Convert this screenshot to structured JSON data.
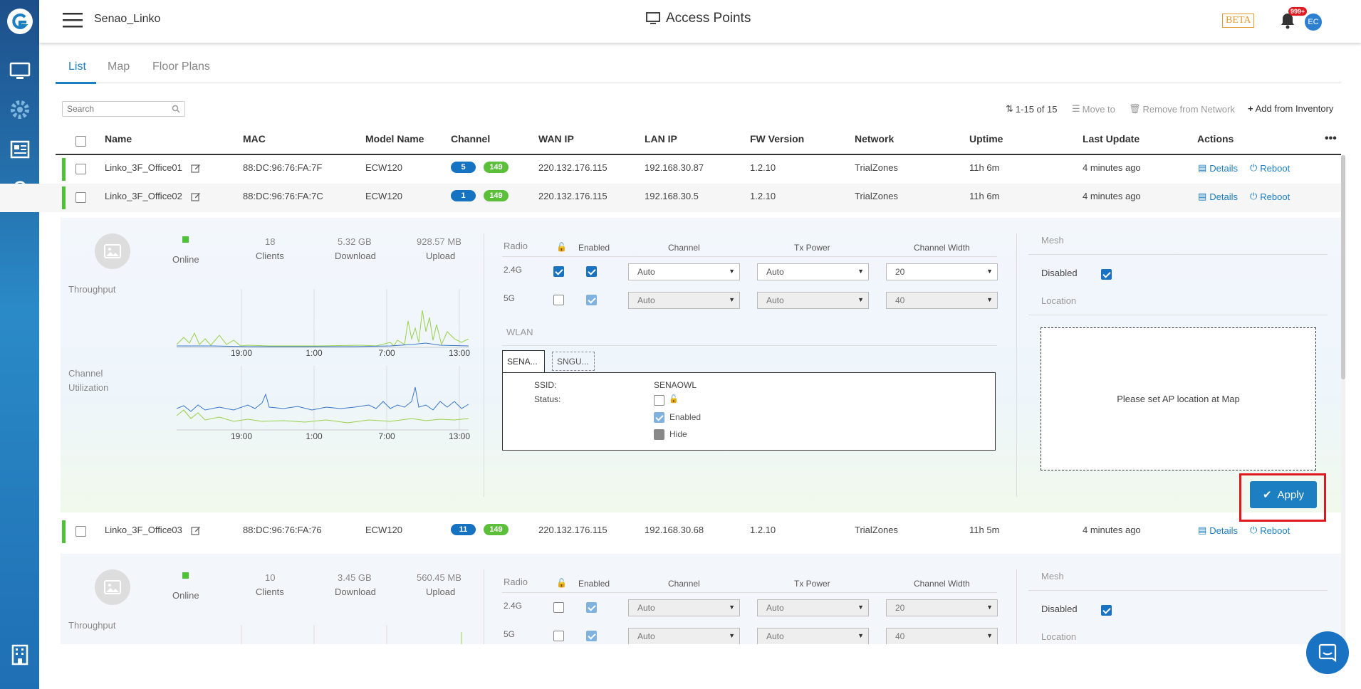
{
  "app": {
    "network_name": "Senao_Linko",
    "page_title": "Access Points",
    "beta": "BETA",
    "notif_count": "999+",
    "avatar": "EC"
  },
  "tabs": [
    "List",
    "Map",
    "Floor Plans"
  ],
  "toolbar": {
    "search_placeholder": "Search",
    "range": "1-15 of 15",
    "move_to": "Move to",
    "remove": "Remove from Network",
    "add": "Add from Inventory"
  },
  "columns": [
    "Name",
    "MAC",
    "Model Name",
    "Channel",
    "WAN IP",
    "LAN IP",
    "FW Version",
    "Network",
    "Uptime",
    "Last Update",
    "Actions"
  ],
  "rows": [
    {
      "name": "Linko_3F_Office01",
      "mac": "88:DC:96:76:FA:7F",
      "model": "ECW120",
      "ch1": "5",
      "ch2": "149",
      "wan": "220.132.176.115",
      "lan": "192.168.30.87",
      "fw": "1.2.10",
      "network": "TrialZones",
      "uptime": "11h 6m",
      "last": "4 minutes ago"
    },
    {
      "name": "Linko_3F_Office02",
      "mac": "88:DC:96:76:FA:7C",
      "model": "ECW120",
      "ch1": "1",
      "ch2": "149",
      "wan": "220.132.176.115",
      "lan": "192.168.30.5",
      "fw": "1.2.10",
      "network": "TrialZones",
      "uptime": "11h 6m",
      "last": "4 minutes ago"
    },
    {
      "name": "Linko_3F_Office03",
      "mac": "88:DC:96:76:FA:76",
      "model": "ECW120",
      "ch1": "11",
      "ch2": "149",
      "wan": "220.132.176.115",
      "lan": "192.168.30.68",
      "fw": "1.2.10",
      "network": "TrialZones",
      "uptime": "11h 5m",
      "last": "4 minutes ago"
    }
  ],
  "actions": {
    "details": "Details",
    "reboot": "Reboot"
  },
  "panel1": {
    "status": "Online",
    "clients_val": "18",
    "clients": "Clients",
    "download_val": "5.32 GB",
    "download": "Download",
    "upload_val": "928.57 MB",
    "upload": "Upload",
    "throughput": "Throughput",
    "channel_util": "Channel Utilization",
    "ticks": [
      "19:00",
      "1:00",
      "7:00",
      "13:00"
    ],
    "radio_hdr": {
      "radio": "Radio",
      "enabled": "Enabled",
      "channel": "Channel",
      "tx": "Tx Power",
      "width": "Channel Width"
    },
    "radios": [
      {
        "band": "2.4G",
        "channel": "Auto",
        "tx": "Auto",
        "width": "20"
      },
      {
        "band": "5G",
        "channel": "Auto",
        "tx": "Auto",
        "width": "40"
      }
    ],
    "wlan": "WLAN",
    "wlan_tabs": [
      "SENA...",
      "SNGU..."
    ],
    "ssid_label": "SSID:",
    "ssid": "SENAOWL",
    "status_label": "Status:",
    "enabled": "Enabled",
    "hide": "Hide",
    "mesh": "Mesh",
    "disabled": "Disabled",
    "location": "Location",
    "location_msg": "Please set AP location at Map",
    "apply": "Apply"
  },
  "panel2": {
    "status": "Online",
    "clients_val": "10",
    "clients": "Clients",
    "download_val": "3.45 GB",
    "download": "Download",
    "upload_val": "560.45 MB",
    "upload": "Upload",
    "throughput": "Throughput",
    "radios": [
      {
        "band": "2.4G",
        "channel": "Auto",
        "tx": "Auto",
        "width": "20"
      },
      {
        "band": "5G",
        "channel": "Auto",
        "tx": "Auto",
        "width": "40"
      }
    ],
    "mesh": "Mesh",
    "disabled": "Disabled",
    "location": "Location"
  },
  "colors": {
    "accent": "#1c7fc1",
    "online": "#4fc136",
    "highlight": "#e0191f",
    "sidebar": "#1f6fb4"
  }
}
